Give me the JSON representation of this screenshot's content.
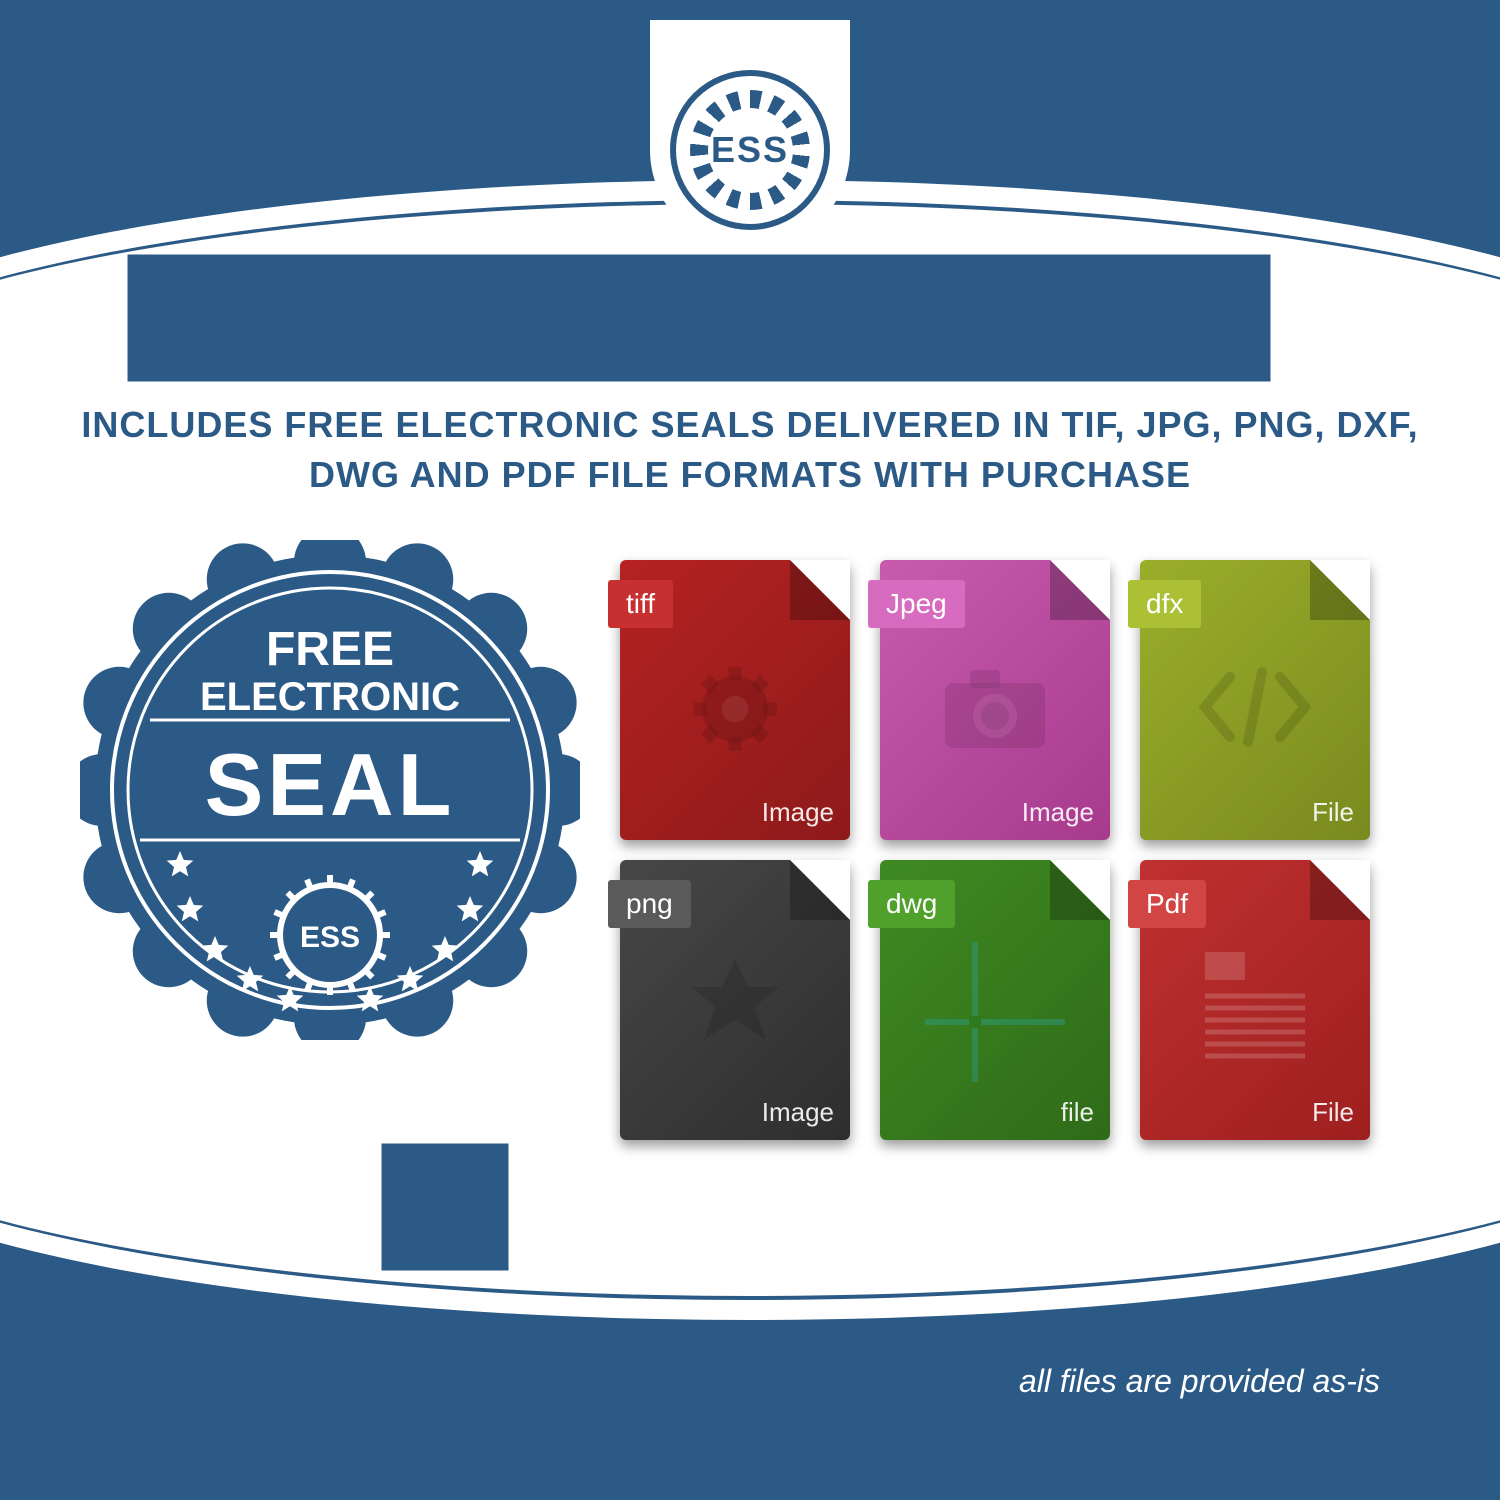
{
  "colors": {
    "primary": "#2b5a87",
    "white": "#ffffff"
  },
  "logo": {
    "text": "ESS"
  },
  "headline": "INCLUDES FREE ELECTRONIC SEALS DELIVERED IN TIF, JPG, PNG, DXF, DWG AND PDF FILE FORMATS WITH PURCHASE",
  "seal": {
    "line1": "FREE",
    "line2": "ELECTRONIC",
    "line3": "SEAL",
    "gear_text": "ESS",
    "color": "#2b5a87",
    "text_color": "#ffffff",
    "star_count": 10
  },
  "files": [
    {
      "label": "tiff",
      "footer": "Image",
      "bg": "#8e1a1a",
      "bg2": "#b52222",
      "label_bg": "#c73030",
      "glyph": "gear"
    },
    {
      "label": "Jpeg",
      "footer": "Image",
      "bg": "#a83a8e",
      "bg2": "#c85bae",
      "label_bg": "#d76bc0",
      "glyph": "camera"
    },
    {
      "label": "dfx",
      "footer": "File",
      "bg": "#7a8a1f",
      "bg2": "#9aae2a",
      "label_bg": "#acc035",
      "glyph": "code"
    },
    {
      "label": "png",
      "footer": "Image",
      "bg": "#2e2e2e",
      "bg2": "#474747",
      "label_bg": "#5a5a5a",
      "glyph": "burst"
    },
    {
      "label": "dwg",
      "footer": "file",
      "bg": "#2f6b18",
      "bg2": "#3f8a22",
      "label_bg": "#4fa12c",
      "glyph": "cross"
    },
    {
      "label": "Pdf",
      "footer": "File",
      "bg": "#9e1f1f",
      "bg2": "#c03030",
      "label_bg": "#d14545",
      "glyph": "doc"
    }
  ],
  "disclaimer": "all files are provided as-is"
}
